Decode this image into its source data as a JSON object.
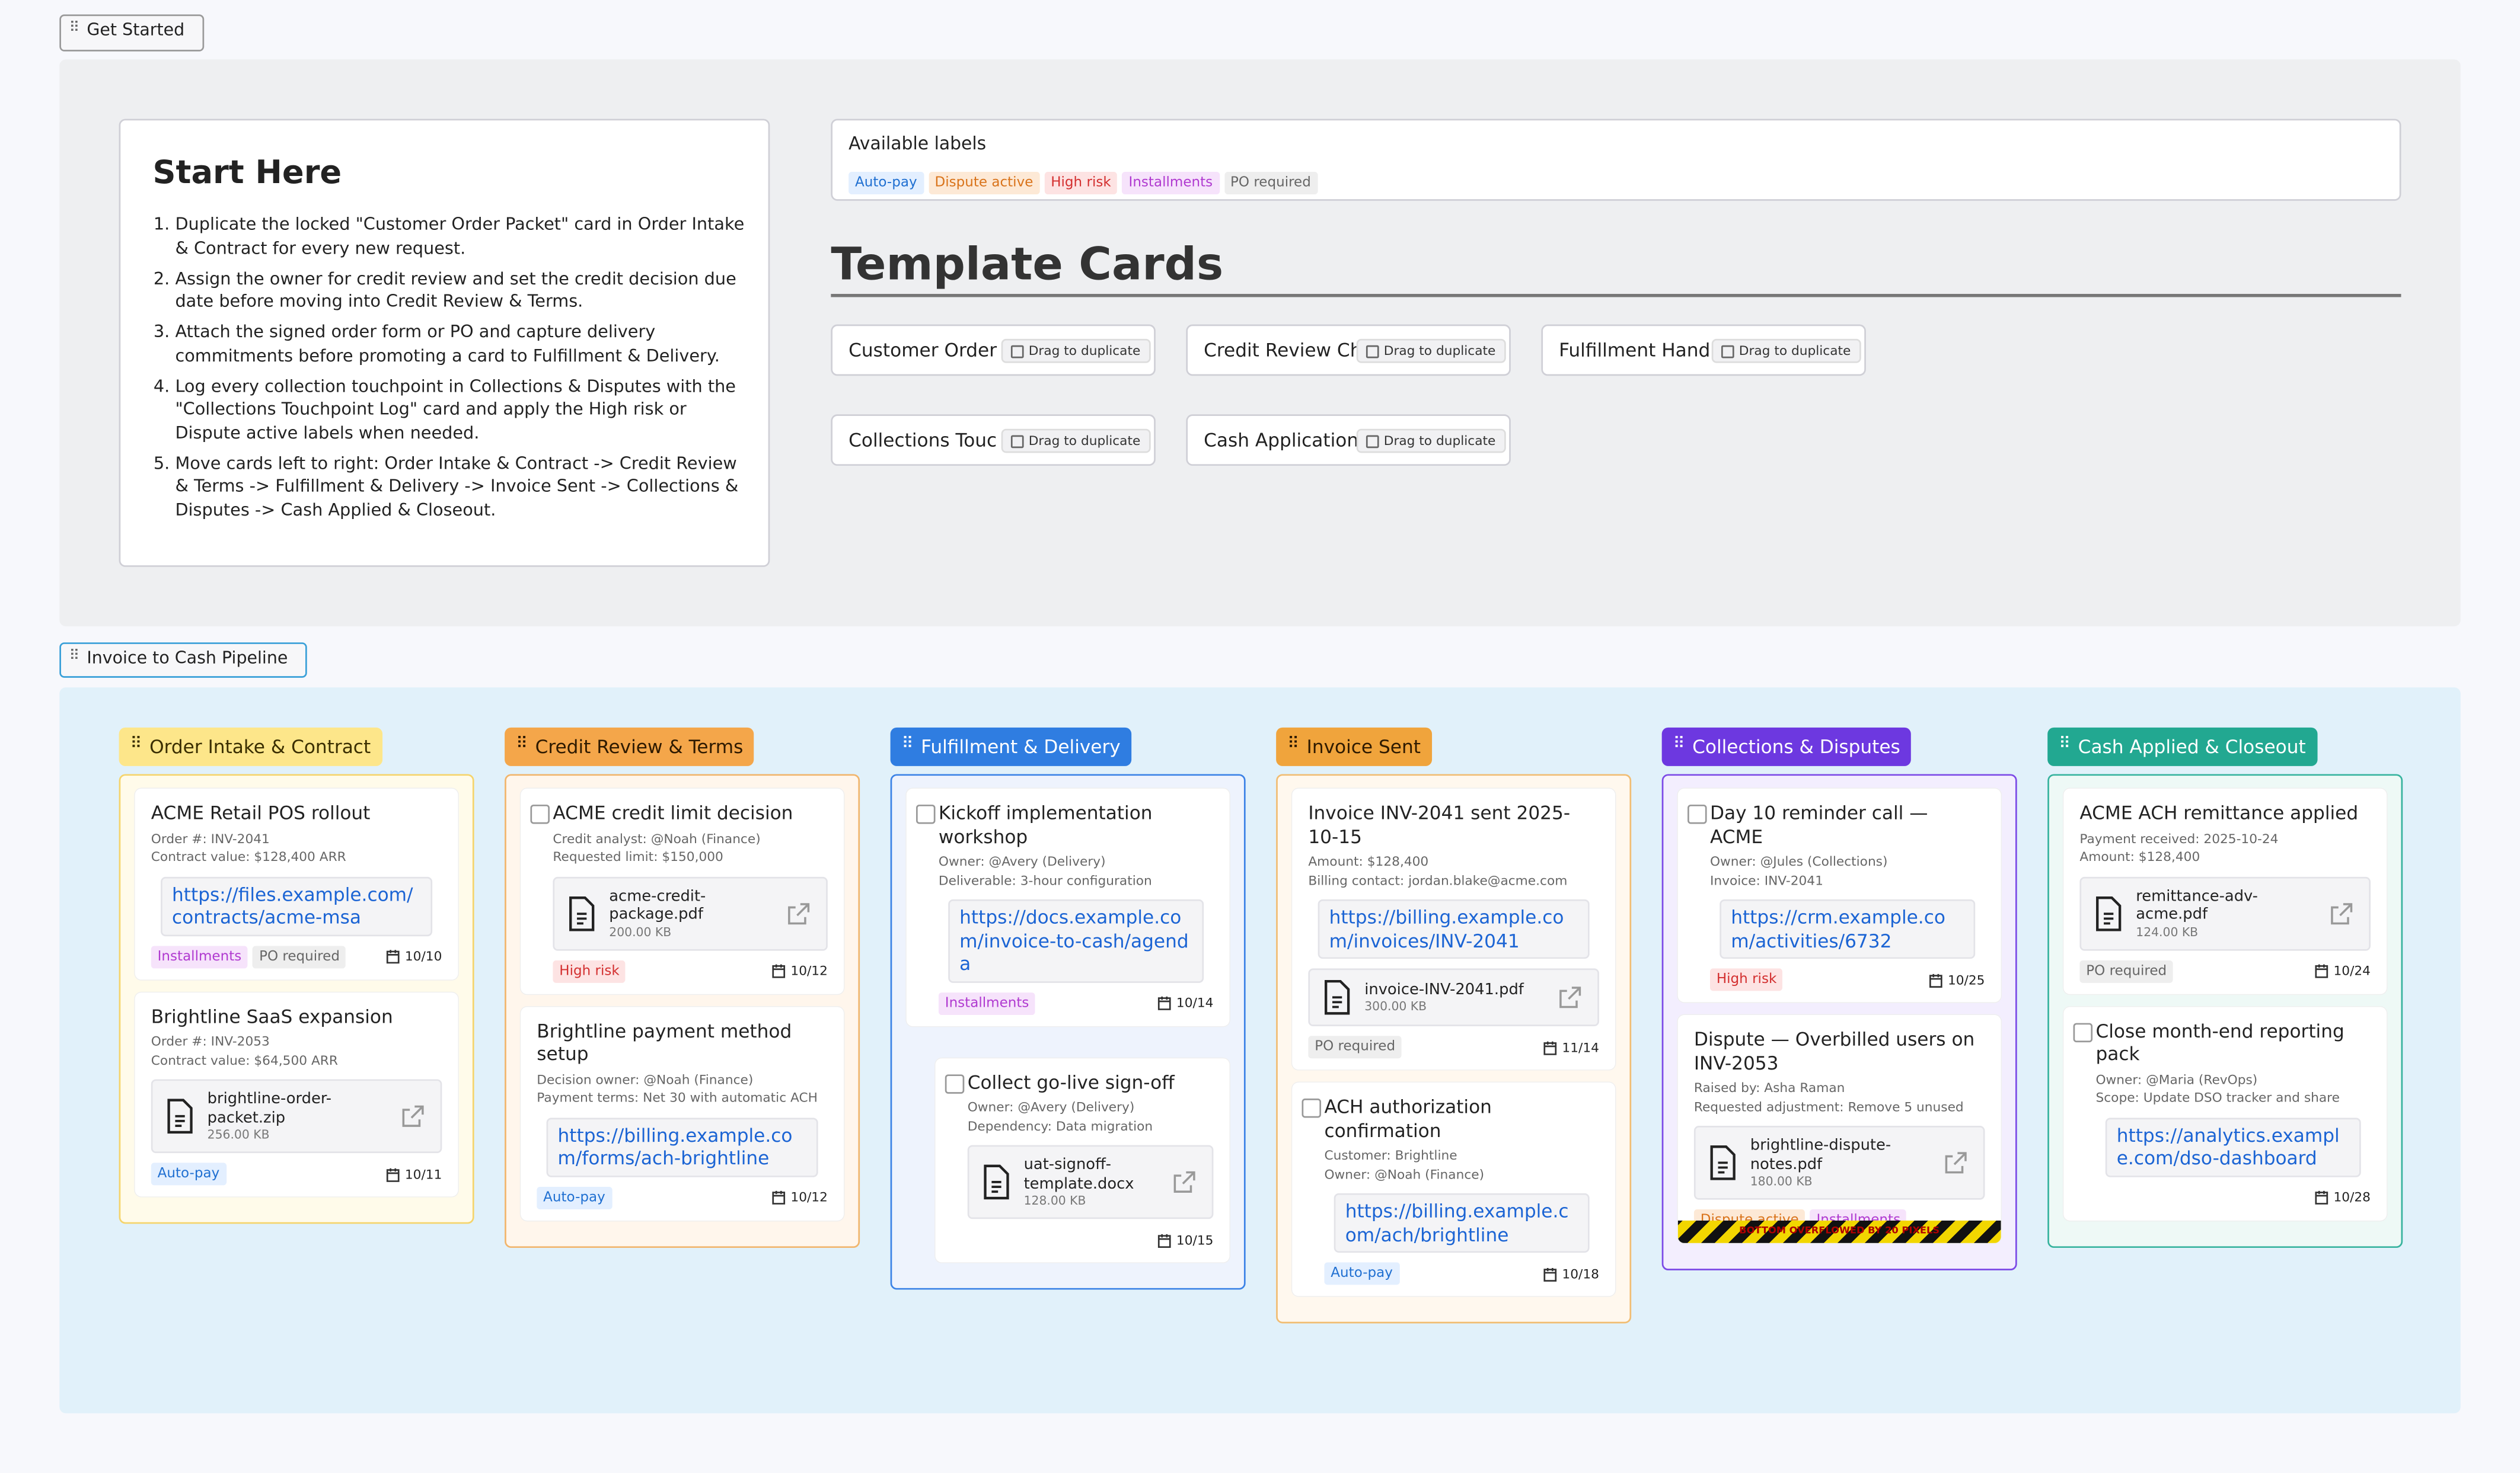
{
  "get_started": {
    "tab": "Get Started",
    "start_here": {
      "title": "Start Here",
      "steps": [
        "Duplicate the locked \"Customer Order Packet\" card in Order Intake & Contract for every new request.",
        "Assign the owner for credit review and set the credit decision due date before moving into Credit Review & Terms.",
        "Attach the signed order form or PO and capture delivery commitments before promoting a card to Fulfillment & Delivery.",
        "Log every collection touchpoint in Collections & Disputes with the \"Collections Touchpoint Log\" card and apply the High risk or Dispute active labels when needed.",
        "Move cards left to right: Order Intake & Contract -> Credit Review & Terms -> Fulfillment & Delivery -> Invoice Sent -> Collections & Disputes -> Cash Applied & Closeout."
      ]
    },
    "labels": {
      "title": "Available labels",
      "items": [
        {
          "name": "Auto-pay",
          "color": "#1f6fd1",
          "bg": "#e3efff"
        },
        {
          "name": "Dispute active",
          "color": "#d9731a",
          "bg": "#fde9d6"
        },
        {
          "name": "High risk",
          "color": "#d32f2f",
          "bg": "#fde3e3"
        },
        {
          "name": "Installments",
          "color": "#b03ad0",
          "bg": "#f6e3fb"
        },
        {
          "name": "PO required",
          "color": "#666666",
          "bg": "#eeeeee"
        }
      ]
    },
    "templates": {
      "title": "Template Cards",
      "cards": [
        {
          "name": "Customer Order",
          "button": "Drag to duplicate"
        },
        {
          "name": "Credit Review Ch",
          "button": "Drag to duplicate"
        },
        {
          "name": "Fulfillment Hand",
          "button": "Drag to duplicate"
        },
        {
          "name": "Collections Touc",
          "button": "Drag to duplicate"
        },
        {
          "name": "Cash Application",
          "button": "Drag to duplicate"
        }
      ]
    }
  },
  "pipeline": {
    "tab": "Invoice to Cash Pipeline",
    "columns": [
      {
        "title": "Order Intake & Contract",
        "color": "#fde68a",
        "text_color": "#3a2e00",
        "border": "#f5d46b",
        "tint": "#fffbea",
        "cards": [
          {
            "title": "ACME Retail POS rollout",
            "checkbox": false,
            "meta": [
              "Order #: INV-2041",
              "Contract value: $128,400 ARR"
            ],
            "link": "https://files.example.com/contracts/acme-msa",
            "labels": [
              "Installments",
              "PO required"
            ],
            "date": "10/10"
          },
          {
            "title": "Brightline SaaS expansion",
            "checkbox": false,
            "meta": [
              "Order #: INV-2053",
              "Contract value: $64,500 ARR"
            ],
            "file": {
              "name": "brightline-order-packet.zip",
              "size": "256.00 KB"
            },
            "labels": [
              "Auto-pay"
            ],
            "date": "10/11"
          }
        ]
      },
      {
        "title": "Credit Review & Terms",
        "color": "#f4a64a",
        "text_color": "#2e1a00",
        "border": "#f1b56c",
        "tint": "#fff6ec",
        "cards": [
          {
            "title": "ACME credit limit decision",
            "checkbox": true,
            "meta": [
              "Credit analyst: @Noah (Finance)",
              "Requested limit: $150,000"
            ],
            "file": {
              "name": "acme-credit-package.pdf",
              "size": "200.00 KB"
            },
            "labels": [
              "High risk"
            ],
            "date": "10/12"
          },
          {
            "title": "Brightline payment method setup",
            "checkbox": false,
            "meta": [
              "Decision owner: @Noah (Finance)",
              "Payment terms: Net 30 with automatic ACH"
            ],
            "link": "https://billing.example.com/forms/ach-brightline",
            "labels": [
              "Auto-pay"
            ],
            "date": "10/12"
          }
        ]
      },
      {
        "title": "Fulfillment & Delivery",
        "color": "#2f7de1",
        "text_color": "#ffffff",
        "border": "#3b82e6",
        "tint": "#eef3fd",
        "cards": [
          {
            "title": "Kickoff implementation workshop",
            "checkbox": true,
            "meta": [
              "Owner: @Avery (Delivery)",
              "Deliverable: 3-hour configuration"
            ],
            "link": "https://docs.example.com/invoice-to-cash/agenda",
            "labels": [
              "Installments"
            ],
            "date": "10/14"
          },
          {
            "title": "Collect go-live sign-off",
            "checkbox": true,
            "indent": true,
            "meta": [
              "Owner: @Avery (Delivery)",
              "Dependency: Data migration"
            ],
            "file": {
              "name": "uat-signoff-template.docx",
              "size": "128.00 KB"
            },
            "labels": [],
            "date": "10/15"
          }
        ]
      },
      {
        "title": "Invoice Sent",
        "color": "#f0a43c",
        "text_color": "#2e1a00",
        "border": "#f1bd73",
        "tint": "#fff8ee",
        "cards": [
          {
            "title": "Invoice INV-2041 sent 2025-10-15",
            "checkbox": false,
            "meta": [
              "Amount: $128,400",
              "Billing contact: jordan.blake@acme.com"
            ],
            "link": "https://billing.example.com/invoices/INV-2041",
            "file": {
              "name": "invoice-INV-2041.pdf",
              "size": "300.00 KB"
            },
            "labels": [
              "PO required"
            ],
            "date": "11/14"
          },
          {
            "title": "ACH authorization confirmation",
            "checkbox": true,
            "meta": [
              "Customer: Brightline",
              "Owner: @Noah (Finance)"
            ],
            "link": "https://billing.example.com/ach/brightline",
            "labels": [
              "Auto-pay"
            ],
            "date": "10/18"
          }
        ]
      },
      {
        "title": "Collections & Disputes",
        "color": "#6d38e0",
        "text_color": "#ffffff",
        "border": "#7c4ae6",
        "tint": "#f3eefe",
        "cards": [
          {
            "title": "Day 10 reminder call — ACME",
            "checkbox": true,
            "meta": [
              "Owner: @Jules (Collections)",
              "Invoice: INV-2041"
            ],
            "link": "https://crm.example.com/activities/6732",
            "labels": [
              "High risk"
            ],
            "date": "10/25"
          },
          {
            "title": "Dispute — Overbilled users on INV-2053",
            "checkbox": false,
            "meta": [
              "Raised by: Asha Raman",
              "Requested adjustment: Remove 5 unused"
            ],
            "file": {
              "name": "brightline-dispute-notes.pdf",
              "size": "180.00 KB"
            },
            "labels": [
              "Dispute active",
              "Installments"
            ],
            "overflow": "BOTTOM OVERFLOWED BY 20 PIXELS"
          }
        ]
      },
      {
        "title": "Cash Applied & Closeout",
        "color": "#22a891",
        "text_color": "#ffffff",
        "border": "#37b39e",
        "tint": "#eef9f6",
        "cards": [
          {
            "title": "ACME ACH remittance applied",
            "checkbox": false,
            "meta": [
              "Payment received: 2025-10-24",
              "Amount: $128,400"
            ],
            "file": {
              "name": "remittance-adv-acme.pdf",
              "size": "124.00 KB"
            },
            "labels": [
              "PO required"
            ],
            "date": "10/24"
          },
          {
            "title": "Close month-end reporting pack",
            "checkbox": true,
            "meta": [
              "Owner: @Maria (RevOps)",
              "Scope: Update DSO tracker and share"
            ],
            "link": "https://analytics.example.com/dso-dashboard",
            "labels": [],
            "date": "10/28"
          }
        ]
      }
    ]
  }
}
